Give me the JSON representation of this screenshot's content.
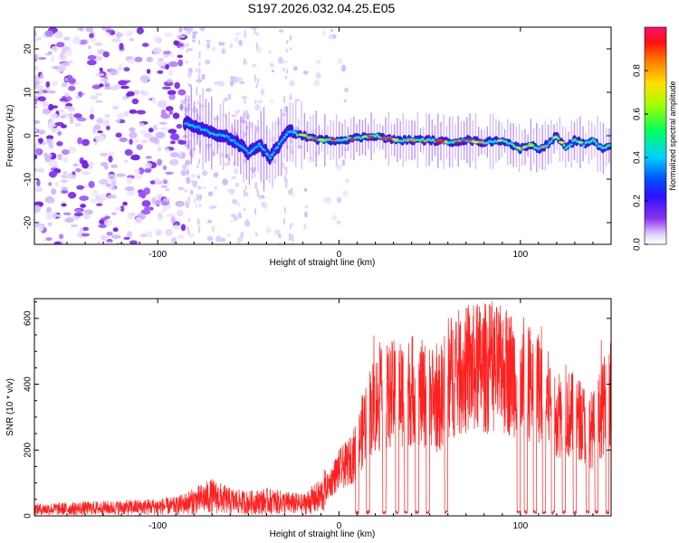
{
  "title": "S197.2026.032.04.25.E05",
  "chart_data": [
    {
      "id": "spectrogram",
      "type": "heatmap",
      "title": "S197.2026.032.04.25.E05",
      "xlabel": "Height of straight line (km)",
      "ylabel": "Frequency (Hz)",
      "xlim": [
        -168,
        150
      ],
      "ylim": [
        -25,
        25
      ],
      "xticks": [
        -100,
        0,
        100
      ],
      "yticks": [
        -20,
        -10,
        0,
        10,
        20
      ],
      "colorbar": {
        "label": "Normalized spectral amplitude",
        "range": [
          0,
          1
        ],
        "ticks": [
          0.0,
          0.2,
          0.4,
          0.6,
          0.8
        ],
        "colormap": [
          "#e8e0ff",
          "#6a00e6",
          "#0022ff",
          "#00d0ff",
          "#00ff40",
          "#d8ff00",
          "#ffaa00",
          "#ff0000",
          "#ff1070"
        ]
      },
      "noise_region": [
        -168,
        -30
      ],
      "signal_start": -85,
      "center_frequency_track": [
        {
          "x": -85,
          "f": 3
        },
        {
          "x": -78,
          "f": 2
        },
        {
          "x": -70,
          "f": 0.5
        },
        {
          "x": -63,
          "f": 0
        },
        {
          "x": -55,
          "f": -2
        },
        {
          "x": -50,
          "f": -4
        },
        {
          "x": -44,
          "f": -2
        },
        {
          "x": -38,
          "f": -5
        },
        {
          "x": -33,
          "f": -2
        },
        {
          "x": -28,
          "f": 1
        },
        {
          "x": -20,
          "f": 0
        },
        {
          "x": -10,
          "f": -1
        },
        {
          "x": 0,
          "f": -1
        },
        {
          "x": 10,
          "f": -0.5
        },
        {
          "x": 20,
          "f": 0
        },
        {
          "x": 30,
          "f": -1
        },
        {
          "x": 40,
          "f": -1
        },
        {
          "x": 50,
          "f": -1
        },
        {
          "x": 60,
          "f": -1.5
        },
        {
          "x": 70,
          "f": -1
        },
        {
          "x": 80,
          "f": -1.5
        },
        {
          "x": 90,
          "f": -1
        },
        {
          "x": 95,
          "f": -2
        },
        {
          "x": 100,
          "f": -3
        },
        {
          "x": 105,
          "f": -2
        },
        {
          "x": 110,
          "f": -3
        },
        {
          "x": 115,
          "f": -2
        },
        {
          "x": 120,
          "f": 0
        },
        {
          "x": 125,
          "f": -3
        },
        {
          "x": 130,
          "f": -1
        },
        {
          "x": 135,
          "f": -2
        },
        {
          "x": 140,
          "f": -1
        },
        {
          "x": 145,
          "f": -3
        },
        {
          "x": 150,
          "f": -2
        }
      ]
    },
    {
      "id": "snr",
      "type": "line",
      "xlabel": "Height of straight line (km)",
      "ylabel": "SNR (10 * v/v)",
      "xlim": [
        -168,
        150
      ],
      "ylim": [
        0,
        660
      ],
      "xticks": [
        -100,
        0,
        100
      ],
      "yticks": [
        0,
        200,
        400,
        600
      ],
      "color": "#ff2020",
      "envelope": [
        {
          "x": -168,
          "y": 20
        },
        {
          "x": -120,
          "y": 25
        },
        {
          "x": -90,
          "y": 30
        },
        {
          "x": -80,
          "y": 45
        },
        {
          "x": -70,
          "y": 60
        },
        {
          "x": -60,
          "y": 45
        },
        {
          "x": -50,
          "y": 40
        },
        {
          "x": -40,
          "y": 45
        },
        {
          "x": -30,
          "y": 40
        },
        {
          "x": -20,
          "y": 35
        },
        {
          "x": -10,
          "y": 60
        },
        {
          "x": -5,
          "y": 100
        },
        {
          "x": 0,
          "y": 140
        },
        {
          "x": 5,
          "y": 160
        },
        {
          "x": 10,
          "y": 200
        },
        {
          "x": 15,
          "y": 300
        },
        {
          "x": 20,
          "y": 340
        },
        {
          "x": 30,
          "y": 370
        },
        {
          "x": 40,
          "y": 380
        },
        {
          "x": 50,
          "y": 360
        },
        {
          "x": 55,
          "y": 340
        },
        {
          "x": 60,
          "y": 420
        },
        {
          "x": 70,
          "y": 440
        },
        {
          "x": 80,
          "y": 450
        },
        {
          "x": 90,
          "y": 440
        },
        {
          "x": 100,
          "y": 430
        },
        {
          "x": 110,
          "y": 380
        },
        {
          "x": 120,
          "y": 320
        },
        {
          "x": 130,
          "y": 300
        },
        {
          "x": 140,
          "y": 260
        },
        {
          "x": 150,
          "y": 380
        }
      ],
      "dropouts": [
        10,
        16,
        25,
        32,
        37,
        43,
        49,
        59,
        99,
        103,
        108,
        113,
        118,
        124,
        130,
        137,
        142,
        148
      ]
    }
  ]
}
